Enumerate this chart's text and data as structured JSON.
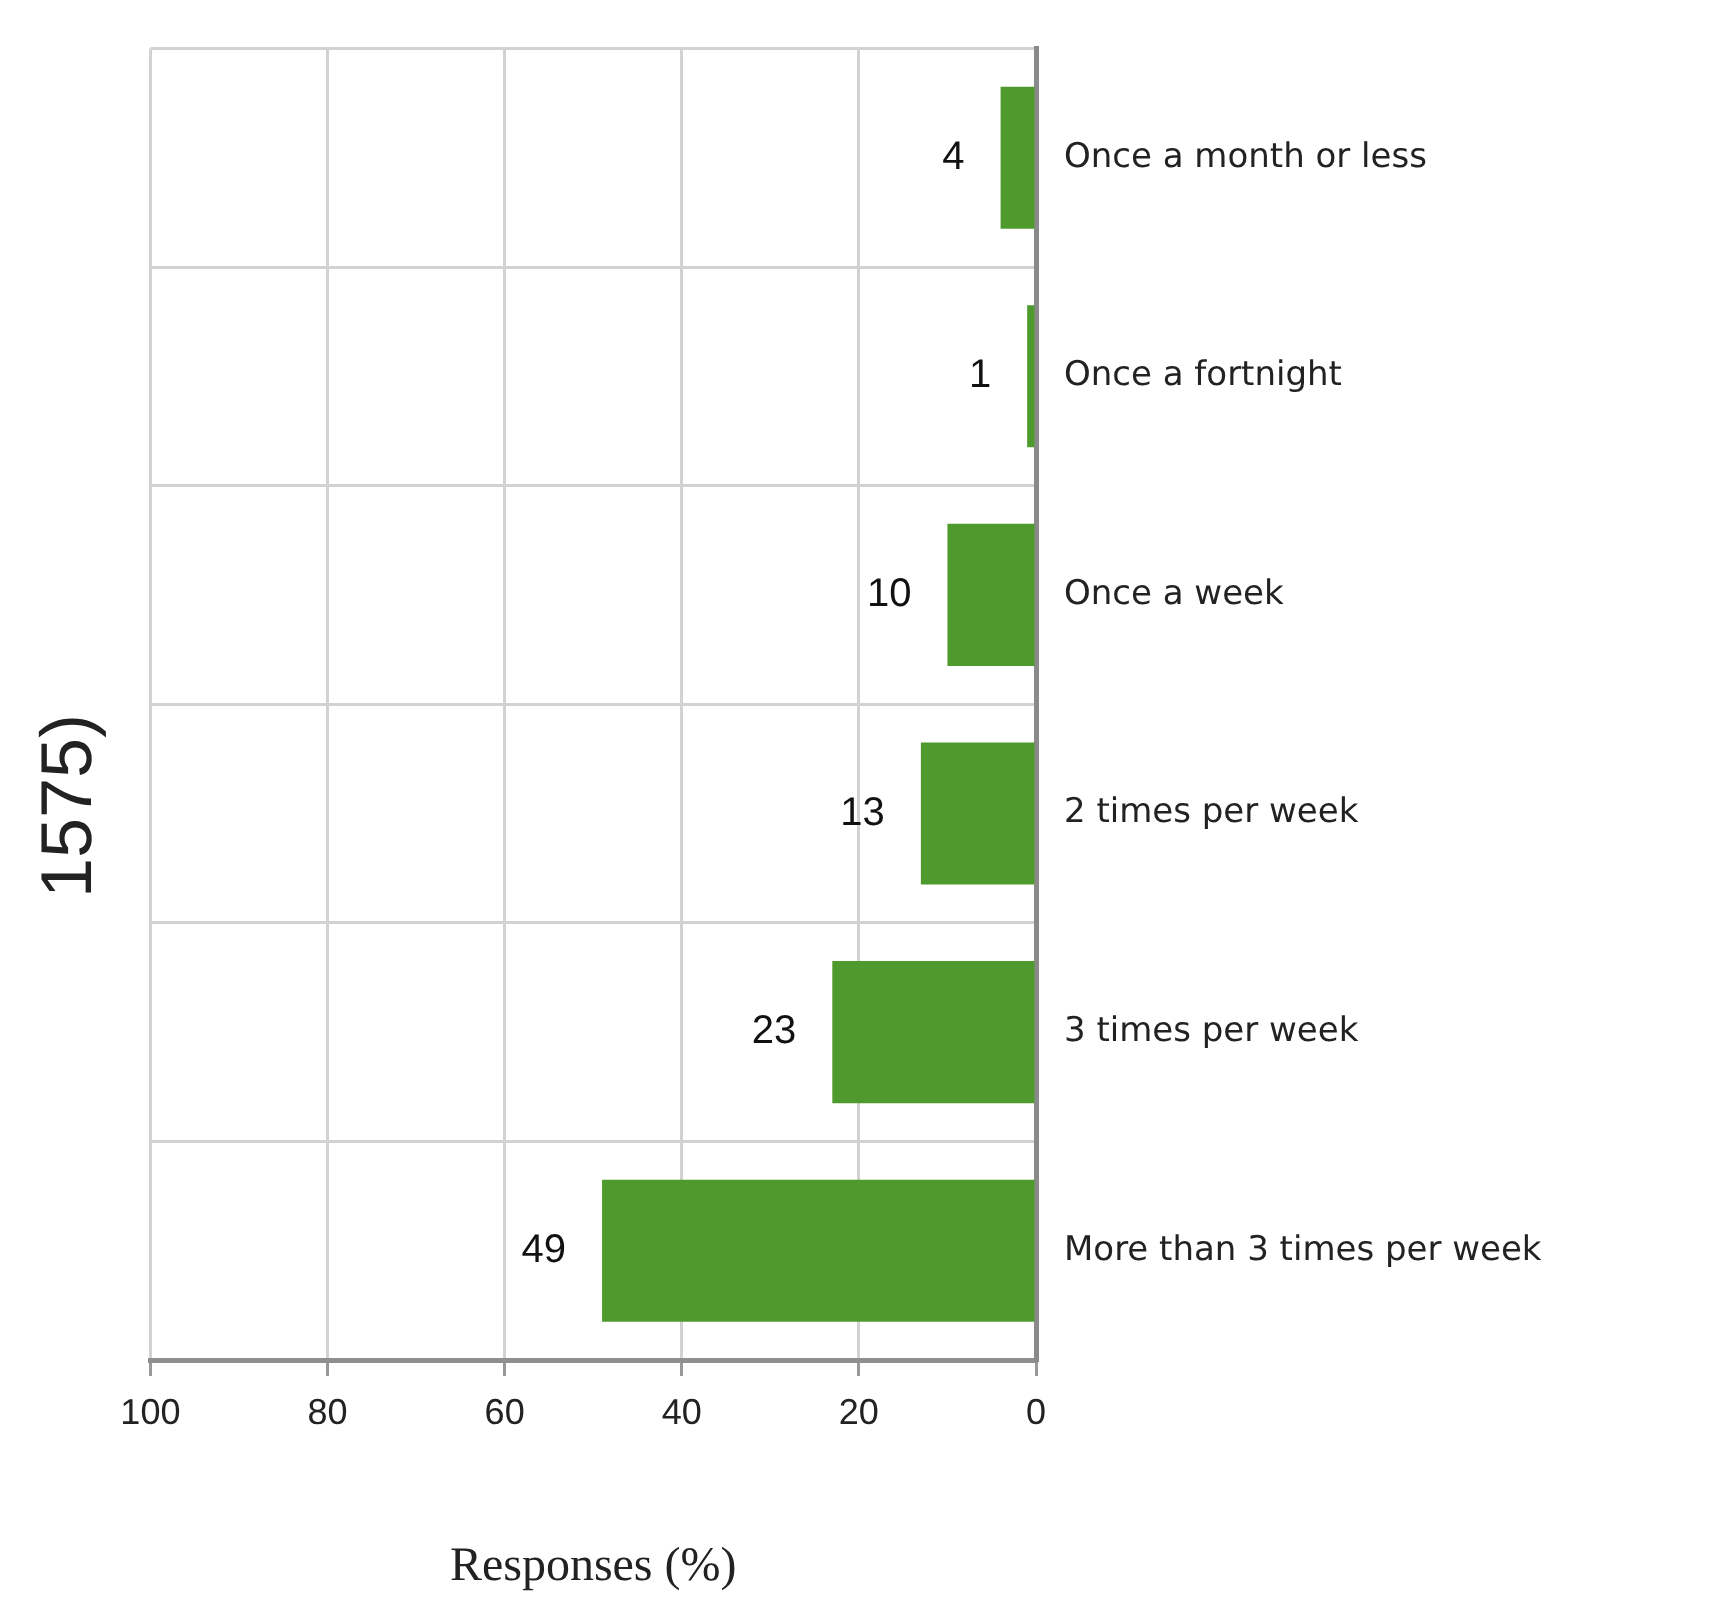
{
  "chart_data": {
    "type": "bar",
    "title": "1575)",
    "xlabel": "Responses (%)",
    "orientation": "horizontal",
    "categories": [
      "Once a month or less",
      "Once a fortnight",
      "Once a week",
      "2 times per week",
      "3 times per week",
      "More than 3 times per week"
    ],
    "values": [
      4,
      1,
      10,
      13,
      23,
      49
    ],
    "color": "#4f9a2c",
    "xlim": [
      100,
      0
    ],
    "xticks": [
      100,
      80,
      60,
      40,
      20,
      0
    ],
    "grid": true,
    "data_labels": true
  }
}
